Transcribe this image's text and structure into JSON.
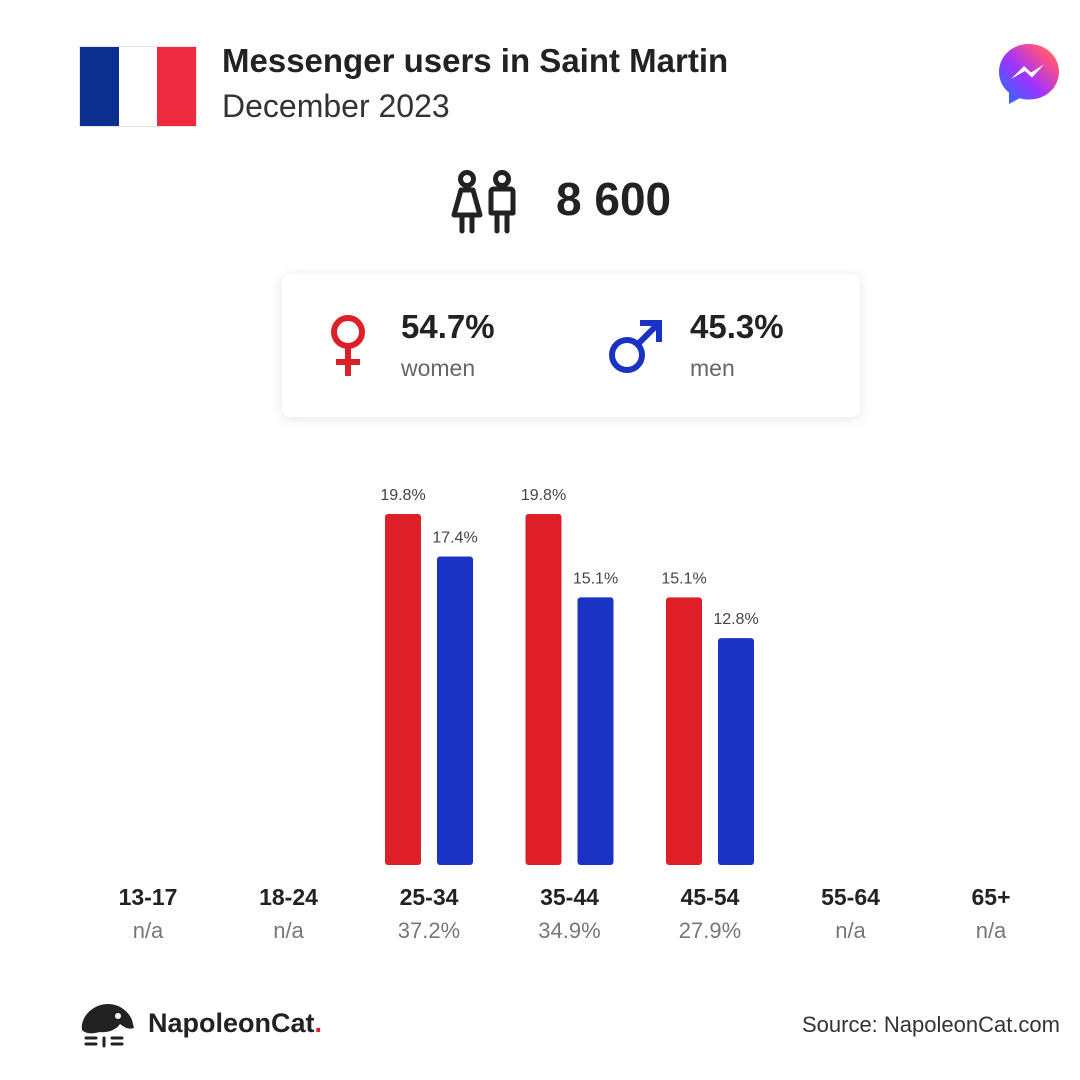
{
  "header": {
    "title": "Messenger users in Saint Martin",
    "subtitle": "December 2023",
    "flag_colors": [
      "#0b2f8f",
      "#ffffff",
      "#ee2a3e"
    ],
    "flag_icon": "france-flag-icon",
    "platform_icon": "messenger-logo-icon"
  },
  "summary": {
    "total_users": "8 600",
    "users_icon": "users-icon"
  },
  "gender": {
    "women": {
      "value": "54.7%",
      "label": "women",
      "icon": "female-symbol-icon",
      "color": "#dd2027"
    },
    "men": {
      "value": "45.3%",
      "label": "men",
      "icon": "male-symbol-icon",
      "color": "#1a33c4"
    }
  },
  "chart_data": {
    "type": "bar",
    "categories": [
      "13-17",
      "18-24",
      "25-34",
      "35-44",
      "45-54",
      "55-64",
      "65+"
    ],
    "category_totals": [
      "n/a",
      "n/a",
      "37.2%",
      "34.9%",
      "27.9%",
      "n/a",
      "n/a"
    ],
    "series": [
      {
        "color": "#dd2027",
        "values": [
          null,
          null,
          19.8,
          19.8,
          15.1,
          null,
          null
        ]
      },
      {
        "color": "#1a33c4",
        "values": [
          null,
          null,
          17.4,
          15.1,
          12.8,
          null,
          null
        ]
      }
    ],
    "value_labels": [
      [
        null,
        null,
        "19.8%",
        "19.8%",
        "15.1%",
        null,
        null
      ],
      [
        null,
        null,
        "17.4%",
        "15.1%",
        "12.8%",
        null,
        null
      ]
    ],
    "ylim": [
      0,
      19.8
    ]
  },
  "footer": {
    "brand": "NapoleonCat",
    "brand_dot": ".",
    "source": "Source: NapoleonCat.com",
    "logo_icon": "napoleoncat-logo-icon"
  }
}
